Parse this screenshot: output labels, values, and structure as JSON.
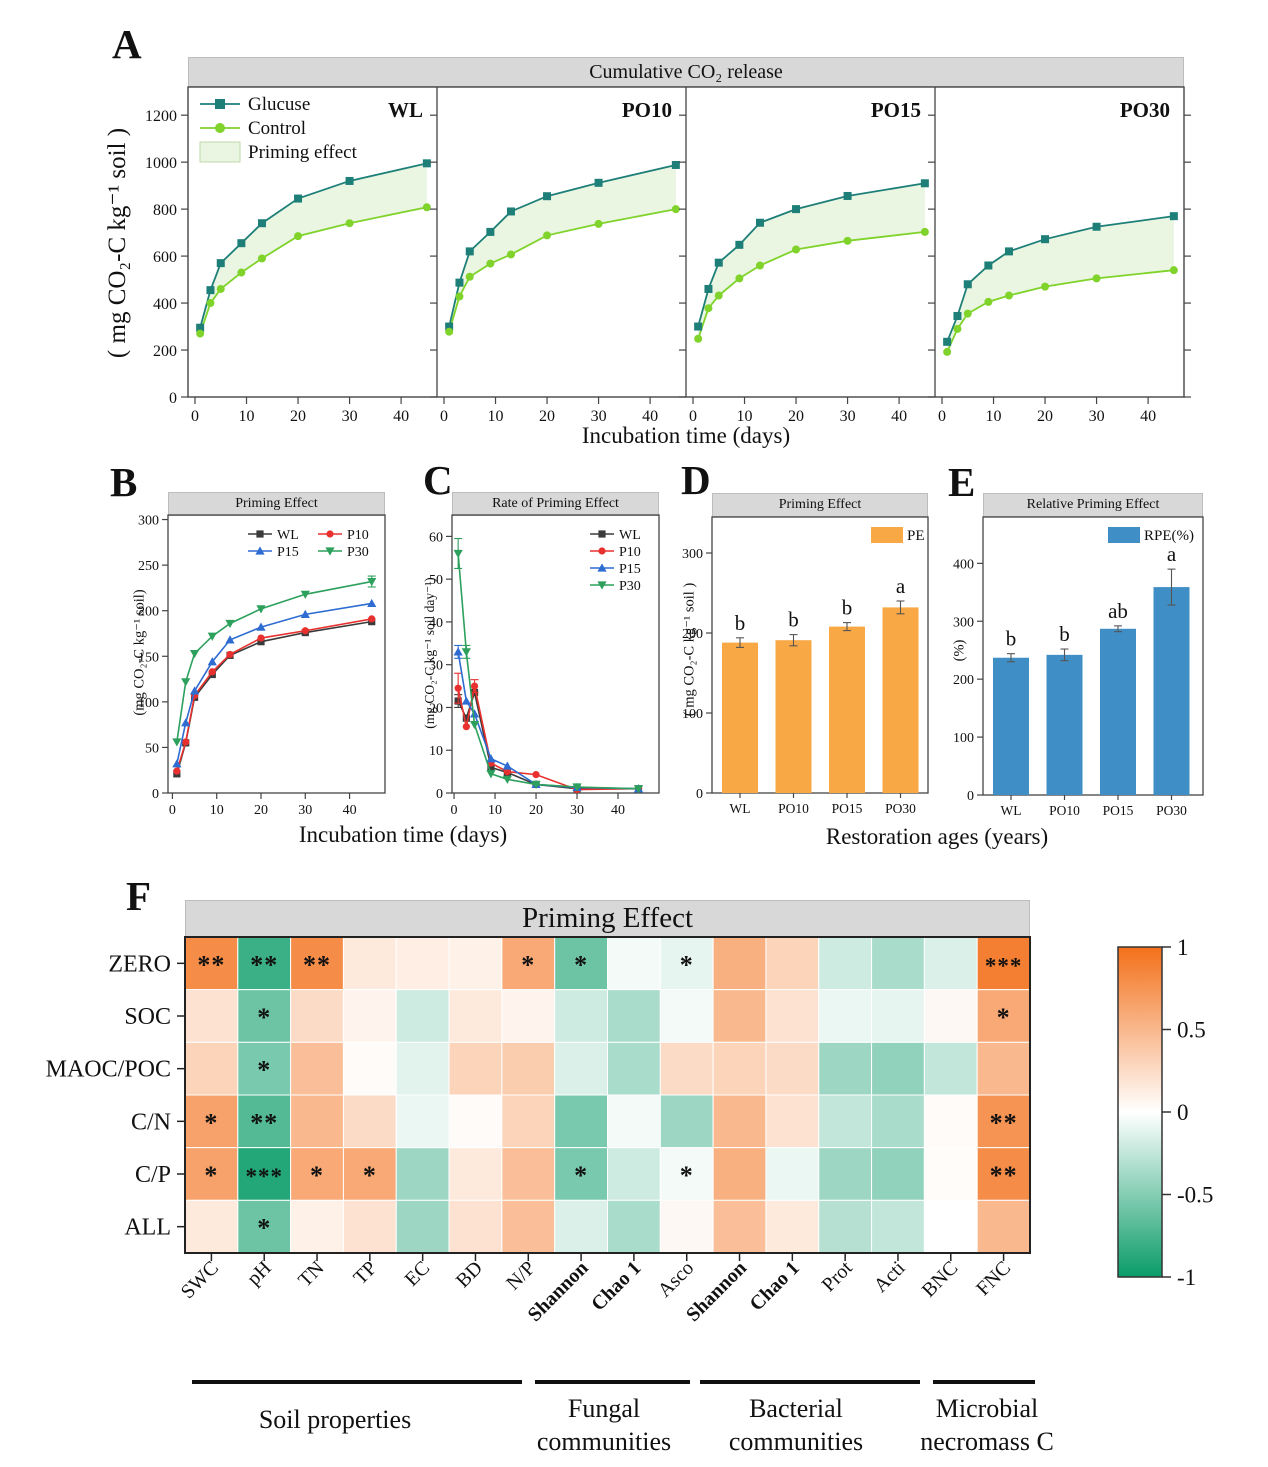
{
  "colors": {
    "band_bg": "#d8d8d8",
    "glucose_line": "#1d7f78",
    "control_line": "#7fd32a",
    "priming_fill": "#eaf5e2",
    "wl_series": "#3b3b3b",
    "p10_series": "#e8302e",
    "p15_series": "#2e6cd2",
    "p30_series": "#2ca05c",
    "pe_bar": "#f8a844",
    "rpe_bar": "#3f8fc6",
    "heat_positive": "#f3701a",
    "heat_negative": "#0a9c69"
  },
  "chart_data": [
    {
      "panel_letter": "A",
      "type": "line",
      "title": "Cumulative CO₂ release",
      "xlabel": "Incubation time (days)",
      "ylabel": "( mg CO₂-C kg⁻¹ soil )",
      "x": [
        1,
        3,
        5,
        9,
        13,
        20,
        30,
        45
      ],
      "xticks": [
        0,
        10,
        20,
        30,
        40
      ],
      "xlim": [
        0,
        46
      ],
      "ylim": [
        0,
        1320
      ],
      "yticks": [
        0,
        200,
        400,
        600,
        800,
        1000,
        1200
      ],
      "legend": [
        {
          "label": "Glucuse",
          "marker": "square",
          "color": "#1d7f78"
        },
        {
          "label": "Control",
          "marker": "circle",
          "color": "#7fd32a"
        },
        {
          "label": "Priming effect",
          "swatch": "#eaf5e2"
        }
      ],
      "fill_color": "#eaf5e2",
      "glucose_color": "#1d7f78",
      "control_color": "#7fd32a",
      "subpanels": [
        {
          "name": "WL",
          "glucose": [
            295,
            455,
            570,
            655,
            740,
            845,
            920,
            995
          ],
          "control": [
            270,
            400,
            460,
            530,
            590,
            685,
            740,
            808
          ]
        },
        {
          "name": "PO10",
          "glucose": [
            300,
            487,
            620,
            703,
            790,
            855,
            912,
            988
          ],
          "control": [
            278,
            428,
            512,
            568,
            607,
            688,
            737,
            800
          ]
        },
        {
          "name": "PO15",
          "glucose": [
            300,
            460,
            572,
            648,
            742,
            800,
            856,
            910
          ],
          "control": [
            248,
            378,
            432,
            505,
            560,
            628,
            665,
            703
          ]
        },
        {
          "name": "PO30",
          "glucose": [
            235,
            345,
            480,
            560,
            620,
            672,
            725,
            770
          ],
          "control": [
            192,
            290,
            355,
            405,
            432,
            470,
            505,
            540
          ]
        }
      ]
    },
    {
      "panel_letter": "B",
      "type": "line",
      "title": "Priming Effect",
      "xlabel": "Incubation time (days)",
      "ylabel": "(mg CO₂-C kg⁻¹ soil)",
      "x": [
        1,
        3,
        5,
        9,
        13,
        20,
        30,
        45
      ],
      "xticks": [
        0,
        10,
        20,
        30,
        40
      ],
      "xlim": [
        -1,
        48
      ],
      "ylim": [
        0,
        305
      ],
      "yticks": [
        0,
        50,
        100,
        150,
        200,
        250,
        300
      ],
      "series": [
        {
          "name": "WL",
          "color": "#3b3b3b",
          "marker": "square",
          "values": [
            21,
            55,
            105,
            130,
            151,
            166,
            176,
            188
          ]
        },
        {
          "name": "P10",
          "color": "#e8302e",
          "marker": "circle",
          "values": [
            24,
            56,
            107,
            133,
            152,
            170,
            178,
            191
          ]
        },
        {
          "name": "P15",
          "color": "#2e6cd2",
          "marker": "triangle-up",
          "values": [
            32,
            77,
            112,
            144,
            168,
            182,
            196,
            208
          ]
        },
        {
          "name": "P30",
          "color": "#2ca05c",
          "marker": "triangle-down",
          "values": [
            56,
            122,
            153,
            172,
            186,
            202,
            218,
            232
          ],
          "err": [
            0,
            0,
            0,
            0,
            0,
            0,
            0,
            6
          ]
        }
      ]
    },
    {
      "panel_letter": "C",
      "type": "line",
      "title": "Rate of Priming Effect",
      "ylabel": "(mg CO₂-C kg⁻¹ soil day⁻¹)",
      "x": [
        1,
        3,
        5,
        9,
        13,
        20,
        30,
        45
      ],
      "xticks": [
        0,
        10,
        20,
        30,
        40
      ],
      "xlim": [
        -0.5,
        50
      ],
      "ylim": [
        0,
        65
      ],
      "yticks": [
        0,
        10,
        20,
        30,
        40,
        50,
        60
      ],
      "series": [
        {
          "name": "WL",
          "color": "#3b3b3b",
          "marker": "square",
          "values": [
            21.5,
            17.5,
            23.5,
            6,
            4.8,
            2,
            1,
            1
          ],
          "err": [
            1.5,
            0,
            0,
            0,
            0,
            0,
            0,
            0
          ]
        },
        {
          "name": "P10",
          "color": "#e8302e",
          "marker": "circle",
          "values": [
            24.5,
            15.5,
            25,
            7,
            5,
            4.3,
            0.8,
            1
          ],
          "err": [
            3.5,
            0,
            1.5,
            0,
            0,
            0,
            0,
            0
          ]
        },
        {
          "name": "P15",
          "color": "#2e6cd2",
          "marker": "triangle-up",
          "values": [
            33,
            21.5,
            18.5,
            8,
            6.3,
            2,
            1.3,
            1
          ],
          "err": [
            1.5,
            0,
            0,
            0,
            0,
            0,
            0,
            0
          ]
        },
        {
          "name": "P30",
          "color": "#2ca05c",
          "marker": "triangle-down",
          "values": [
            56,
            33,
            16,
            4.5,
            3.2,
            2,
            1.4,
            1
          ],
          "err": [
            3.5,
            1.5,
            0,
            0,
            0,
            0,
            0,
            0
          ]
        }
      ]
    },
    {
      "panel_letter": "D",
      "type": "bar",
      "title": "Priming Effect",
      "xlabel": "Restoration ages (years)",
      "ylabel": "( mg CO₂-C kg⁻¹ soil )",
      "categories": [
        "WL",
        "PO10",
        "PO15",
        "PO30"
      ],
      "values": [
        188,
        191,
        208,
        232
      ],
      "errors": [
        6,
        7,
        5,
        8
      ],
      "letters": [
        "b",
        "b",
        "b",
        "a"
      ],
      "bar_color": "#f8a844",
      "legend_label": "PE",
      "ylim": [
        0,
        345
      ],
      "yticks": [
        0,
        100,
        200,
        300
      ]
    },
    {
      "panel_letter": "E",
      "type": "bar",
      "title": "Relative Priming Effect",
      "ylabel": "(%)",
      "categories": [
        "WL",
        "PO10",
        "PO15",
        "PO30"
      ],
      "values": [
        237,
        242,
        287,
        359
      ],
      "errors": [
        7,
        10,
        5,
        31
      ],
      "letters": [
        "b",
        "b",
        "ab",
        "a"
      ],
      "bar_color": "#3f8fc6",
      "legend_label": "RPE(%)",
      "ylim": [
        0,
        480
      ],
      "yticks": [
        0,
        100,
        200,
        300,
        400
      ]
    },
    {
      "panel_letter": "F",
      "type": "heatmap",
      "title": "Priming Effect",
      "rows": [
        "ZERO",
        "SOC",
        "MAOC/POC",
        "C/N",
        "C/P",
        "ALL"
      ],
      "cols": [
        {
          "label": "SWC"
        },
        {
          "label": "pH"
        },
        {
          "label": "TN"
        },
        {
          "label": "TP"
        },
        {
          "label": "EC"
        },
        {
          "label": "BD"
        },
        {
          "label": "N/P"
        },
        {
          "label": "Shannon",
          "bold": true
        },
        {
          "label": "Chao 1",
          "bold": true
        },
        {
          "label": "Asco"
        },
        {
          "label": "Shannon",
          "bold": true
        },
        {
          "label": "Chao 1",
          "bold": true
        },
        {
          "label": "Prot"
        },
        {
          "label": "Acti"
        },
        {
          "label": "BNC"
        },
        {
          "label": "FNC"
        }
      ],
      "values": [
        [
          0.8,
          -0.8,
          0.8,
          0.15,
          0.12,
          0.1,
          0.6,
          -0.6,
          -0.05,
          -0.1,
          0.55,
          0.3,
          -0.2,
          -0.35,
          -0.15,
          0.9
        ],
        [
          0.2,
          -0.6,
          0.25,
          0.08,
          -0.2,
          0.15,
          0.08,
          -0.2,
          -0.35,
          -0.05,
          0.5,
          0.2,
          -0.08,
          -0.1,
          0.05,
          0.6
        ],
        [
          0.3,
          -0.55,
          0.45,
          0.03,
          -0.12,
          0.3,
          0.35,
          -0.15,
          -0.35,
          0.25,
          0.3,
          0.25,
          -0.4,
          -0.45,
          -0.25,
          0.5
        ],
        [
          0.65,
          -0.7,
          0.5,
          0.25,
          -0.08,
          0.03,
          0.3,
          -0.55,
          -0.05,
          -0.4,
          0.5,
          0.2,
          -0.25,
          -0.35,
          0.03,
          0.75
        ],
        [
          0.65,
          -0.9,
          0.6,
          0.6,
          -0.4,
          0.15,
          0.45,
          -0.55,
          -0.2,
          -0.05,
          0.55,
          -0.08,
          -0.4,
          -0.45,
          0.02,
          0.8
        ],
        [
          0.15,
          -0.6,
          0.1,
          0.2,
          -0.4,
          0.2,
          0.45,
          -0.15,
          -0.35,
          0.05,
          0.45,
          0.15,
          -0.3,
          -0.25,
          0.0,
          0.5
        ]
      ],
      "stars": [
        [
          "**",
          "**",
          "**",
          "",
          "",
          "",
          "*",
          "*",
          "",
          "*",
          "",
          "",
          "",
          "",
          "",
          "***"
        ],
        [
          "",
          "*",
          "",
          "",
          "",
          "",
          "",
          "",
          "",
          "",
          "",
          "",
          "",
          "",
          "",
          "*"
        ],
        [
          "",
          "*",
          "",
          "",
          "",
          "",
          "",
          "",
          "",
          "",
          "",
          "",
          "",
          "",
          "",
          ""
        ],
        [
          "*",
          "**",
          "",
          "",
          "",
          "",
          "",
          "",
          "",
          "",
          "",
          "",
          "",
          "",
          "",
          "**"
        ],
        [
          "*",
          "***",
          "*",
          "*",
          "",
          "",
          "",
          "*",
          "",
          "*",
          "",
          "",
          "",
          "",
          "",
          "**"
        ],
        [
          "",
          "*",
          "",
          "",
          "",
          "",
          "",
          "",
          "",
          "",
          "",
          "",
          "",
          "",
          "",
          ""
        ]
      ],
      "groups": [
        {
          "label": "Soil properties",
          "from": 0,
          "to": 6
        },
        {
          "label": "Fungal\ncommunities",
          "from": 7,
          "to": 9
        },
        {
          "label": "Bacterial\ncommunities",
          "from": 10,
          "to": 13
        },
        {
          "label": "Microbial\nnecromass C",
          "from": 14,
          "to": 15
        }
      ],
      "colorbar": {
        "ticks": [
          "1",
          "0.5",
          "0",
          "-0.5",
          "-1"
        ],
        "pos_color": "#f3701a",
        "neg_color": "#0a9c69"
      }
    }
  ]
}
